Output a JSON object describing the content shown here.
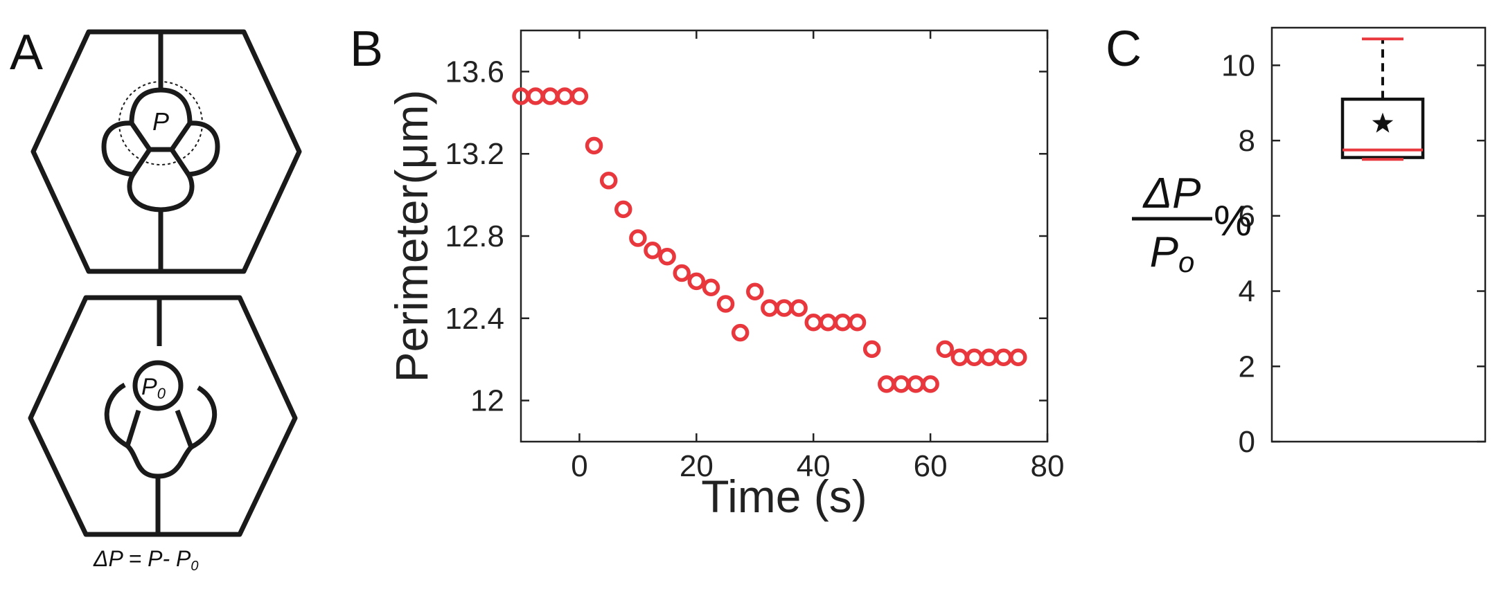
{
  "panels": {
    "a": {
      "letter": "A",
      "cell_label_top": "P",
      "cell_label_bottom": "P",
      "cell_label_bottom_sub": "0",
      "formula": "ΔP = P- P",
      "formula_sub": "0"
    },
    "b": {
      "letter": "B"
    },
    "c": {
      "letter": "C"
    }
  },
  "chart_data": [
    {
      "type": "scatter",
      "xlabel": "Time (s)",
      "ylabel": "Perimeter(μm)",
      "xlim": [
        -10,
        80
      ],
      "ylim": [
        11.8,
        13.8
      ],
      "xticks": [
        "0",
        "20",
        "40",
        "60",
        "80"
      ],
      "yticks": [
        "12",
        "12.4",
        "12.8",
        "13.2",
        "13.6"
      ],
      "marker": "open-circle",
      "color": "#e8383d",
      "x": [
        -10,
        -7.5,
        -5,
        -2.5,
        0,
        2.5,
        5,
        7.5,
        10,
        12.5,
        15,
        17.5,
        20,
        22.5,
        25,
        27.5,
        30,
        32.5,
        35,
        37.5,
        40,
        42.5,
        45,
        47.5,
        50,
        52.5,
        55,
        57.5,
        60,
        62.5,
        65,
        67.5,
        70,
        72.5,
        75
      ],
      "y": [
        13.48,
        13.48,
        13.48,
        13.48,
        13.48,
        13.24,
        13.07,
        12.93,
        12.79,
        12.73,
        12.7,
        12.62,
        12.58,
        12.55,
        12.47,
        12.33,
        12.53,
        12.45,
        12.45,
        12.45,
        12.38,
        12.38,
        12.38,
        12.38,
        12.25,
        12.08,
        12.08,
        12.08,
        12.08,
        12.25,
        12.21,
        12.21,
        12.21,
        12.21,
        12.21
      ]
    },
    {
      "type": "box",
      "ylabel_numerator": "ΔP",
      "ylabel_denominator": "P",
      "ylabel_denominator_sub": "o",
      "ylabel_unit": "%",
      "ylim": [
        0,
        11
      ],
      "yticks": [
        "0",
        "2",
        "4",
        "6",
        "8",
        "10"
      ],
      "whisker_low": 7.5,
      "q1": 7.55,
      "median": 7.75,
      "q3": 9.1,
      "whisker_high": 10.7,
      "mean": 8.45,
      "median_color": "#e8383d",
      "whisker_cap_color": "#e8383d"
    }
  ]
}
